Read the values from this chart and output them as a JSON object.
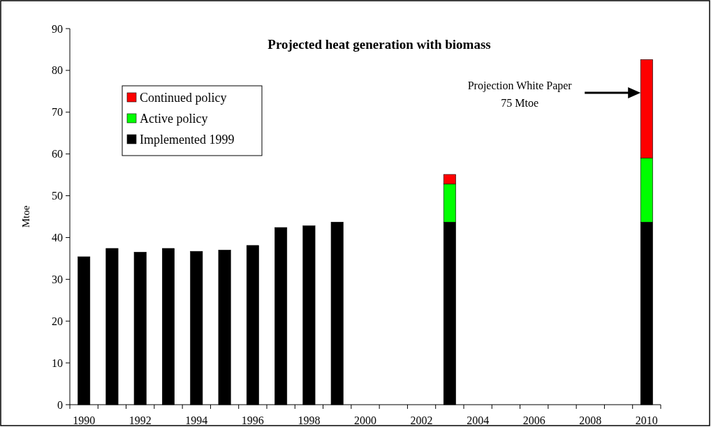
{
  "chart_data": {
    "type": "bar",
    "title": "Projected heat generation with biomass",
    "ylabel": "Mtoe",
    "categories": [
      "1990",
      null,
      "1992",
      null,
      "1994",
      null,
      "1996",
      null,
      "1998",
      null,
      "2000",
      null,
      "2002",
      null,
      "2004",
      null,
      "2006",
      null,
      "2008",
      null,
      "2010"
    ],
    "stacked": true,
    "series": [
      {
        "name": "Implemented 1999",
        "color": "#000000",
        "values": [
          35.4,
          37.4,
          36.5,
          37.4,
          36.7,
          37.0,
          38.1,
          42.4,
          42.8,
          43.7,
          null,
          null,
          null,
          43.7,
          null,
          null,
          null,
          null,
          null,
          null,
          43.7
        ]
      },
      {
        "name": "Active policy",
        "color": "#00ff00",
        "values": [
          null,
          null,
          null,
          null,
          null,
          null,
          null,
          null,
          null,
          null,
          null,
          null,
          null,
          9.1,
          null,
          null,
          null,
          null,
          null,
          null,
          15.3
        ]
      },
      {
        "name": "Continued policy",
        "color": "#ff0000",
        "values": [
          null,
          null,
          null,
          null,
          null,
          null,
          null,
          null,
          null,
          null,
          null,
          null,
          null,
          2.3,
          null,
          null,
          null,
          null,
          null,
          null,
          23.6
        ]
      }
    ],
    "ylim": [
      0,
      90
    ],
    "yticks": [
      0,
      10,
      20,
      30,
      40,
      50,
      60,
      70,
      80,
      90
    ],
    "legend": "top left",
    "annotations": [
      "Projection White Paper\n75 Mtoe"
    ]
  }
}
